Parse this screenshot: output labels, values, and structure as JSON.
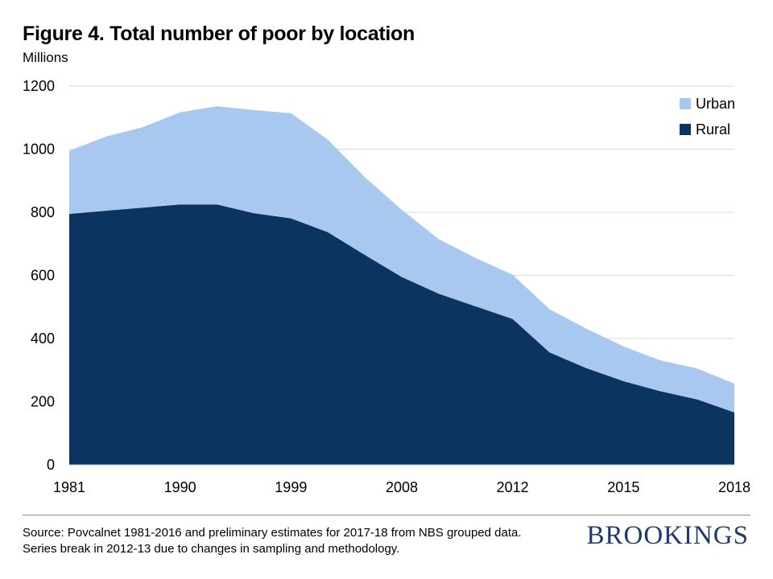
{
  "header": {
    "title": "Figure 4. Total number of poor by location",
    "subtitle": "Millions"
  },
  "footer": {
    "source": "Source: Povcalnet 1981-2016 and preliminary estimates for 2017-18 from NBS grouped data. Series break in 2012-13 due to changes in sampling and methodology.",
    "logo": "BROOKINGS"
  },
  "chart_data": {
    "type": "area",
    "stacked": true,
    "title": "Figure 4. Total number of poor by location",
    "ylabel": "Millions",
    "xlabel": "",
    "ylim": [
      0,
      1200
    ],
    "yticks": [
      0,
      200,
      400,
      600,
      800,
      1000,
      1200
    ],
    "x_tick_labels": [
      "1981",
      "1990",
      "1999",
      "2008",
      "2012",
      "2015",
      "2018"
    ],
    "categories": [
      1981,
      1984,
      1987,
      1990,
      1993,
      1996,
      1999,
      2002,
      2005,
      2008,
      2010,
      2011,
      2012,
      2013,
      2014,
      2015,
      2016,
      2017,
      2018
    ],
    "series": [
      {
        "name": "Rural",
        "color": "#0b3461",
        "values": [
          795,
          805,
          815,
          825,
          825,
          797,
          781,
          737,
          665,
          595,
          542,
          502,
          462,
          356,
          306,
          265,
          233,
          207,
          166
        ]
      },
      {
        "name": "Urban",
        "color": "#a8c8f0",
        "values": [
          200,
          235,
          255,
          292,
          311,
          327,
          333,
          293,
          246,
          213,
          173,
          153,
          140,
          137,
          125,
          110,
          98,
          98,
          91
        ]
      }
    ],
    "grid": "horizontal",
    "legend": {
      "position": "top-right",
      "order": [
        "Urban",
        "Rural"
      ]
    }
  }
}
